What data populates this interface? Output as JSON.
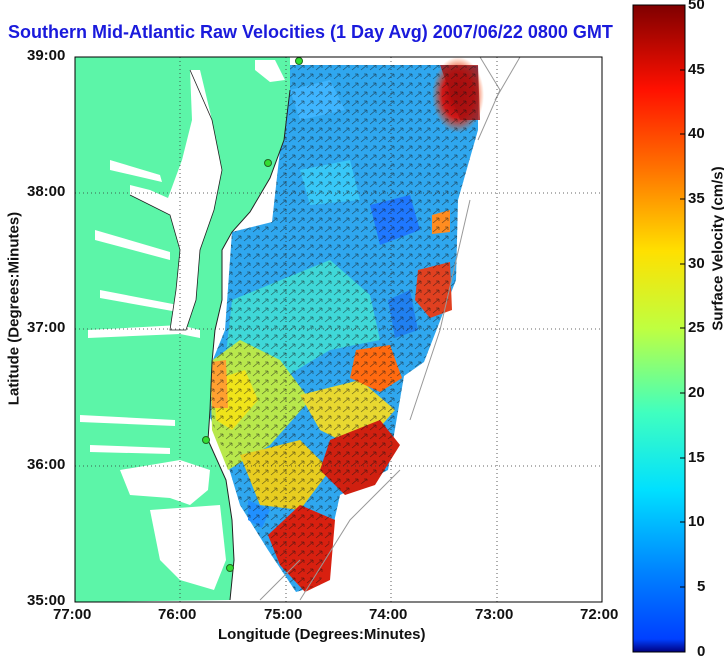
{
  "title": "Southern Mid-Atlantic Raw Velocities (1 Day Avg) 2007/06/22 0800 GMT",
  "x_axis": {
    "label": "Longitude (Degrees:Minutes)",
    "ticks": [
      "77:00",
      "76:00",
      "75:00",
      "74:00",
      "73:00",
      "72:00"
    ],
    "range_deg_west": [
      77,
      72
    ]
  },
  "y_axis": {
    "label": "Latitude (Degrees:Minutes)",
    "ticks": [
      "39:00",
      "38:00",
      "37:00",
      "36:00",
      "35:00"
    ],
    "range_deg_north": [
      35,
      39
    ]
  },
  "colorbar": {
    "label": "Surface Velocity (cm/s)",
    "ticks": [
      "50",
      "45",
      "40",
      "35",
      "30",
      "25",
      "20",
      "15",
      "10",
      "5",
      "0"
    ],
    "range": [
      0,
      50
    ],
    "colormap": "jet"
  },
  "colors": {
    "land": "#5cf5a8",
    "title": "#1a1adc",
    "station_marker": "#33dd33"
  },
  "grid": "dotted"
}
